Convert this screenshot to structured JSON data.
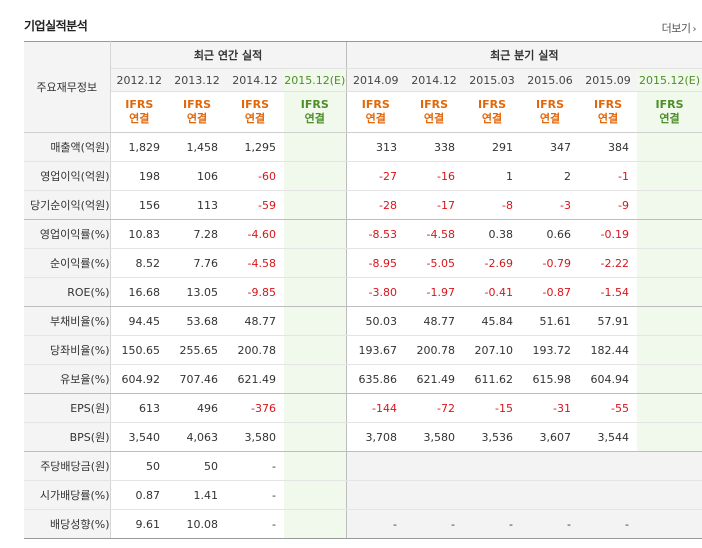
{
  "title": "기업실적분석",
  "more_label": "더보기",
  "more_icon": "chevron-right-icon",
  "row_header": "주요재무정보",
  "groups": {
    "annual": "최근 연간 실적",
    "quarterly": "최근 분기 실적"
  },
  "periods": [
    "2012.12",
    "2013.12",
    "2014.12",
    "2015.12(E)",
    "2014.09",
    "2014.12",
    "2015.03",
    "2015.06",
    "2015.09",
    "2015.12(E)"
  ],
  "ifrs_line1": "IFRS",
  "ifrs_line2": "연결",
  "rows": [
    {
      "label": "매출액(억원)",
      "values": [
        "1,829",
        "1,458",
        "1,295",
        "",
        "313",
        "338",
        "291",
        "347",
        "384",
        ""
      ]
    },
    {
      "label": "영업이익(억원)",
      "values": [
        "198",
        "106",
        "-60",
        "",
        "-27",
        "-16",
        "1",
        "2",
        "-1",
        ""
      ]
    },
    {
      "label": "당기순이익(억원)",
      "values": [
        "156",
        "113",
        "-59",
        "",
        "-28",
        "-17",
        "-8",
        "-3",
        "-9",
        ""
      ]
    },
    {
      "label": "영업이익률(%)",
      "values": [
        "10.83",
        "7.28",
        "-4.60",
        "",
        "-8.53",
        "-4.58",
        "0.38",
        "0.66",
        "-0.19",
        ""
      ]
    },
    {
      "label": "순이익률(%)",
      "values": [
        "8.52",
        "7.76",
        "-4.58",
        "",
        "-8.95",
        "-5.05",
        "-2.69",
        "-0.79",
        "-2.22",
        ""
      ]
    },
    {
      "label": "ROE(%)",
      "values": [
        "16.68",
        "13.05",
        "-9.85",
        "",
        "-3.80",
        "-1.97",
        "-0.41",
        "-0.87",
        "-1.54",
        ""
      ]
    },
    {
      "label": "부채비율(%)",
      "values": [
        "94.45",
        "53.68",
        "48.77",
        "",
        "50.03",
        "48.77",
        "45.84",
        "51.61",
        "57.91",
        ""
      ]
    },
    {
      "label": "당좌비율(%)",
      "values": [
        "150.65",
        "255.65",
        "200.78",
        "",
        "193.67",
        "200.78",
        "207.10",
        "193.72",
        "182.44",
        ""
      ]
    },
    {
      "label": "유보율(%)",
      "values": [
        "604.92",
        "707.46",
        "621.49",
        "",
        "635.86",
        "621.49",
        "611.62",
        "615.98",
        "604.94",
        ""
      ]
    },
    {
      "label": "EPS(원)",
      "values": [
        "613",
        "496",
        "-376",
        "",
        "-144",
        "-72",
        "-15",
        "-31",
        "-55",
        ""
      ]
    },
    {
      "label": "BPS(원)",
      "values": [
        "3,540",
        "4,063",
        "3,580",
        "",
        "3,708",
        "3,580",
        "3,536",
        "3,607",
        "3,544",
        ""
      ]
    },
    {
      "label": "주당배당금(원)",
      "values": [
        "50",
        "50",
        "-",
        "",
        "",
        "",
        "",
        "",
        "",
        ""
      ]
    },
    {
      "label": "시가배당률(%)",
      "values": [
        "0.87",
        "1.41",
        "-",
        "",
        "",
        "",
        "",
        "",
        "",
        ""
      ]
    },
    {
      "label": "배당성향(%)",
      "values": [
        "9.61",
        "10.08",
        "-",
        "",
        "-",
        "-",
        "-",
        "-",
        "-",
        ""
      ]
    }
  ],
  "colors": {
    "negative": "#d8161b",
    "ifrs": "#e2670b",
    "estimate": "#4c8f29",
    "estimate_bg": "#f1f8ec"
  }
}
